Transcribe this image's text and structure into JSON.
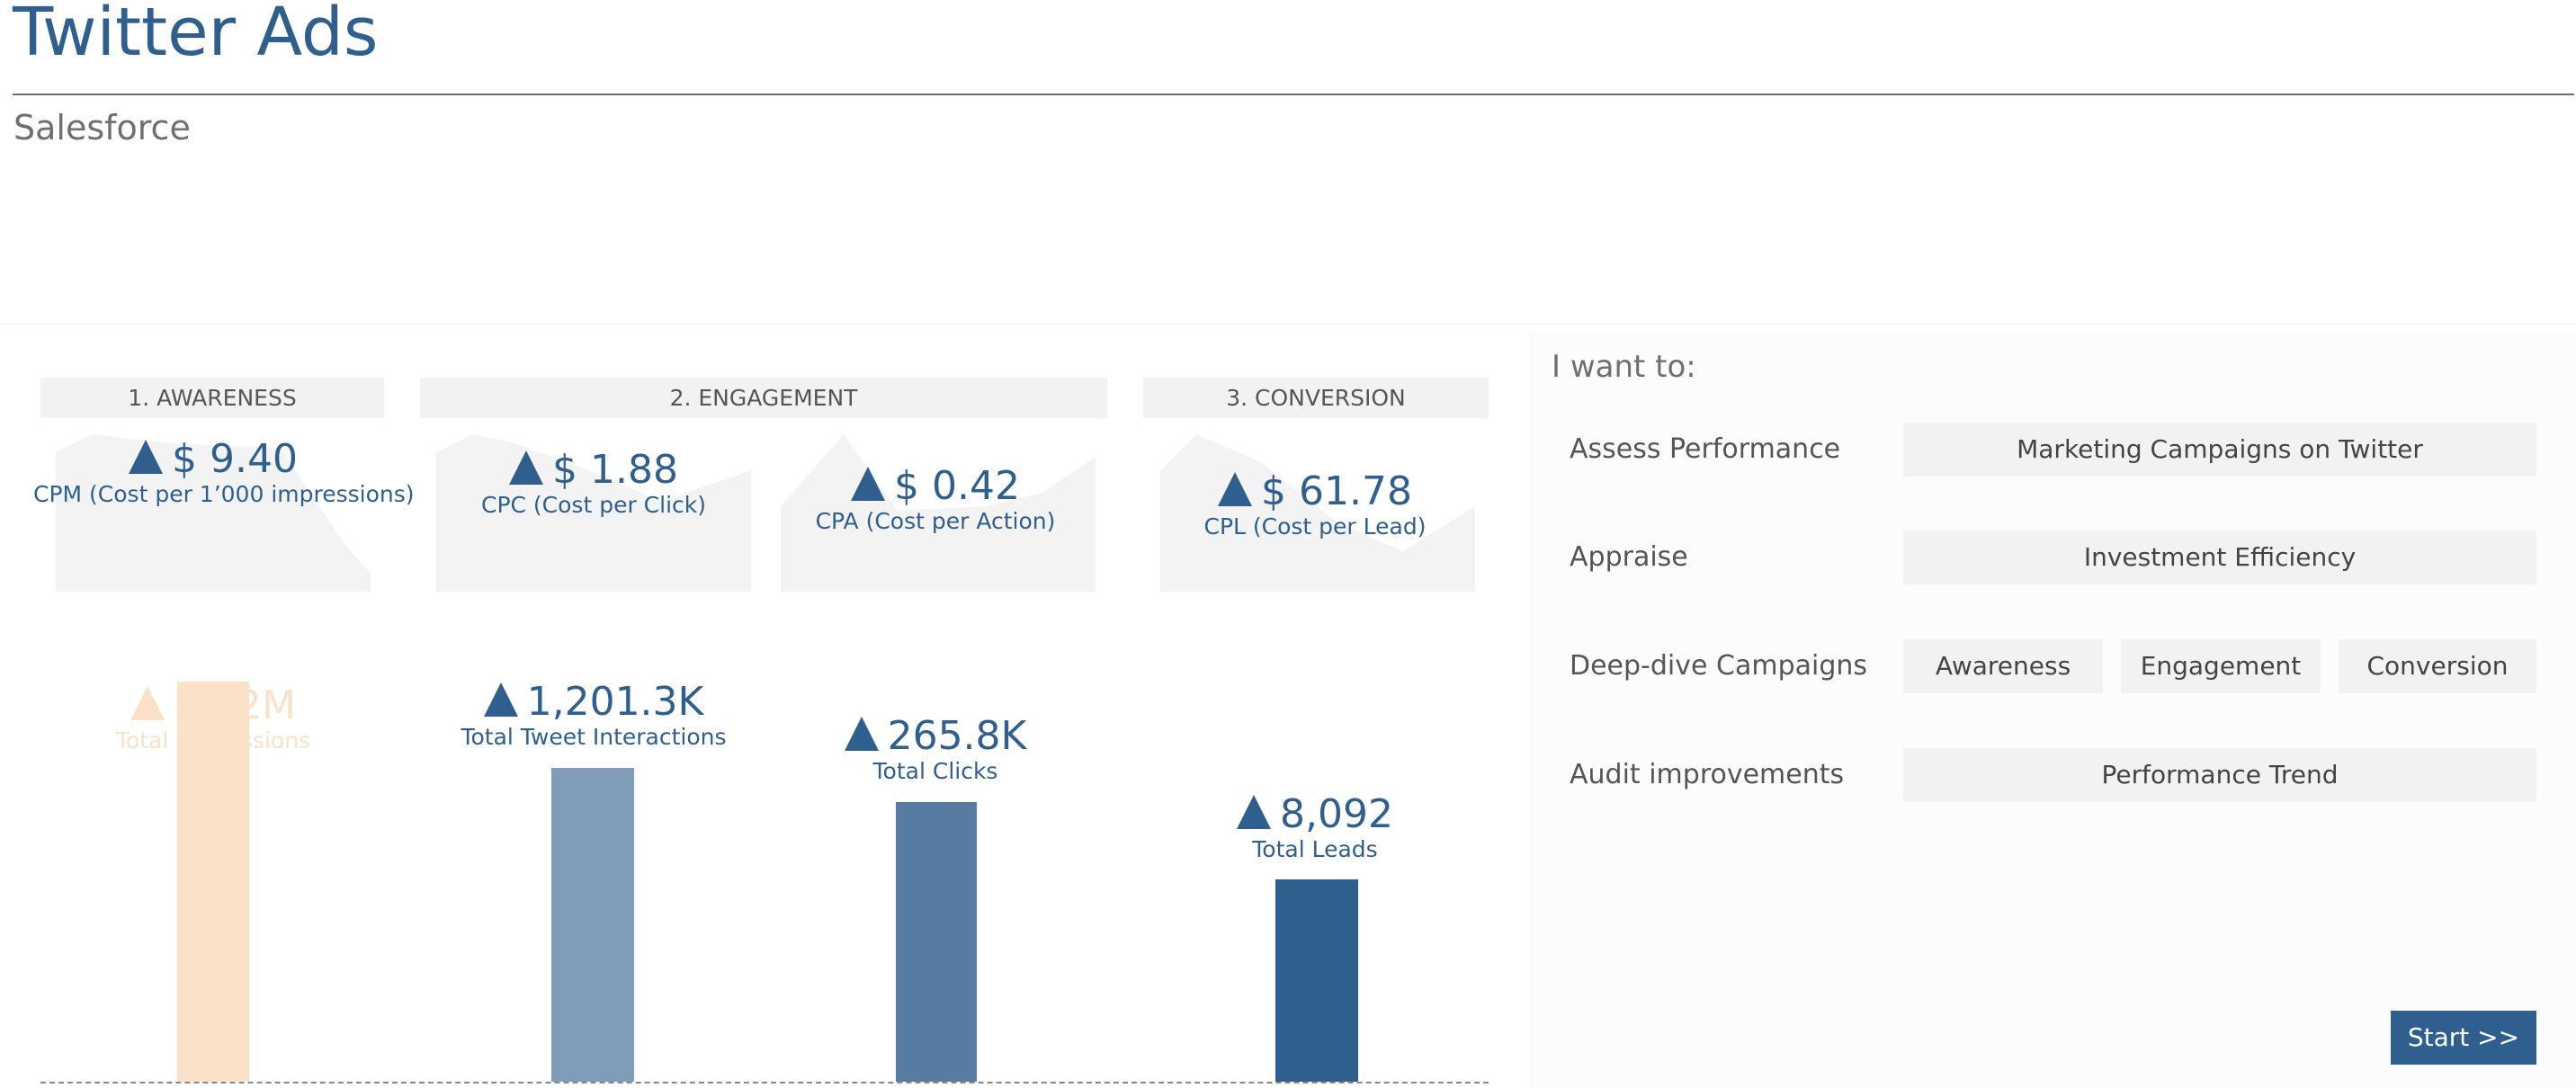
{
  "header": {
    "title": "Twitter Ads",
    "subtitle": "Salesforce"
  },
  "stages": [
    "1. AWARENESS",
    "2. ENGAGEMENT",
    "3. CONVERSION"
  ],
  "cost_kpis": [
    {
      "value": "$ 9.40",
      "label": "CPM (Cost per 1’000 impressions)"
    },
    {
      "value": "$ 1.88",
      "label": "CPC (Cost per Click)"
    },
    {
      "value": "$ 0.42",
      "label": "CPA (Cost per Action)"
    },
    {
      "value": "$ 61.78",
      "label": "CPL (Cost per Lead)"
    }
  ],
  "volume_kpis": [
    {
      "value": "53.2M",
      "label": "Total Impressions"
    },
    {
      "value": "1,201.3K",
      "label": "Total Tweet Interactions"
    },
    {
      "value": "265.8K",
      "label": "Total Clicks"
    },
    {
      "value": "8,092",
      "label": "Total Leads"
    }
  ],
  "colors": {
    "accent": "#2e5f8f",
    "bar_impressions": "#fbe1c8",
    "bar_interactions": "#7f9db9",
    "bar_clicks": "#567ca2",
    "bar_leads": "#2e5f8f"
  },
  "panel": {
    "heading": "I want to:",
    "rows": [
      {
        "label": "Assess Performance",
        "options": [
          "Marketing Campaigns on Twitter"
        ]
      },
      {
        "label": "Appraise",
        "options": [
          "Investment Efficiency"
        ]
      },
      {
        "label": "Deep-dive Campaigns",
        "options": [
          "Awareness",
          "Engagement",
          "Conversion"
        ]
      },
      {
        "label": "Audit improvements",
        "options": [
          "Performance Trend"
        ]
      }
    ],
    "start_label": "Start >>"
  },
  "icons": {
    "trend": "triangle-up-icon"
  }
}
